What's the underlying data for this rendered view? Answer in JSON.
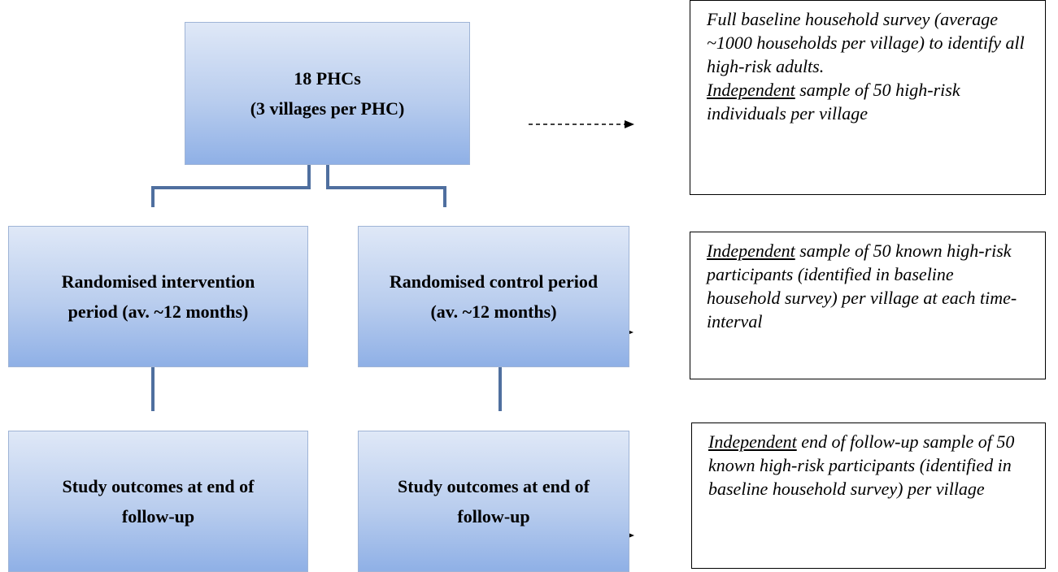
{
  "nodes": [
    {
      "lines": [
        "18 PHCs",
        "(3 villages per PHC)"
      ]
    },
    {
      "lines": [
        "Randomised intervention",
        "period (av. ~12 months)"
      ]
    },
    {
      "lines": [
        "Randomised control period",
        "(av. ~12 months)"
      ]
    },
    {
      "lines": [
        "Study outcomes at end of",
        "follow-up"
      ]
    },
    {
      "lines": [
        "Study outcomes at end of",
        "follow-up"
      ]
    }
  ],
  "notes": [
    {
      "paragraphs": [
        [
          {
            "text": "Full baseline household survey (average ~1000 households per village) to identify all high-risk adults."
          }
        ],
        [
          {
            "text": "Independent",
            "underline": true
          },
          {
            "text": " sample of 50 high-risk individuals per village"
          }
        ]
      ]
    },
    {
      "paragraphs": [
        [
          {
            "text": "Independent",
            "underline": true
          },
          {
            "text": " sample of 50 known high-risk participants (identified in baseline household survey) per village at each time-interval"
          }
        ]
      ]
    },
    {
      "paragraphs": [
        [
          {
            "text": "Independent",
            "underline": true
          },
          {
            "text": " end of follow-up sample of 50 known high-risk participants (identified in baseline household survey) per village"
          }
        ]
      ]
    }
  ]
}
